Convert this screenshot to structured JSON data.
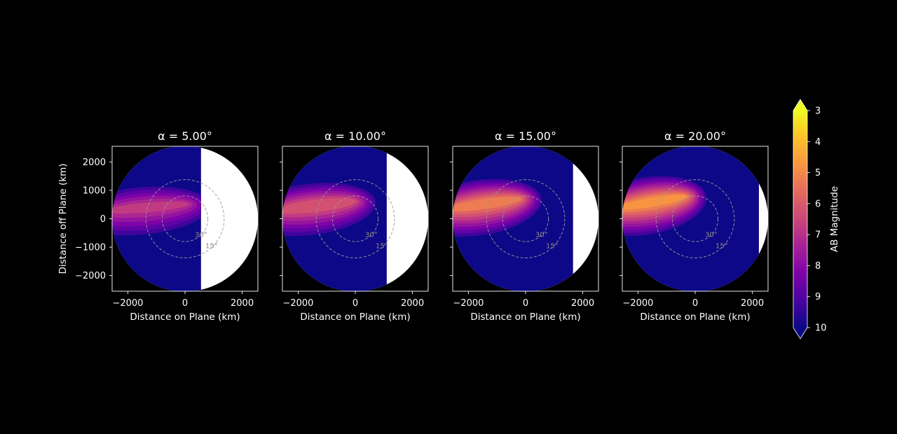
{
  "chart_data": {
    "type": "heatmap",
    "panels": [
      {
        "title": "α = 5.00°",
        "alpha_deg": 5,
        "night_edge_km": 560,
        "peak_mag": 6.9
      },
      {
        "title": "α = 10.00°",
        "alpha_deg": 10,
        "night_edge_km": 1100,
        "peak_mag": 6.2
      },
      {
        "title": "α = 15.00°",
        "alpha_deg": 15,
        "night_edge_km": 1660,
        "peak_mag": 5.4
      },
      {
        "title": "α = 20.00°",
        "alpha_deg": 20,
        "night_edge_km": 2230,
        "peak_mag": 5.0
      }
    ],
    "xlabel": "Distance on Plane (km)",
    "ylabel": "Distance off Plane (km)",
    "xlim": [
      -2550,
      2550
    ],
    "ylim": [
      -2550,
      2550
    ],
    "xticks": [
      -2000,
      0,
      2000
    ],
    "yticks": [
      2000,
      1000,
      0,
      -1000,
      -2000
    ],
    "xtick_labels": [
      "−2000",
      "0",
      "2000"
    ],
    "ytick_labels": [
      "2000",
      "1000",
      "0",
      "−1000",
      "−2000"
    ],
    "disk_radius_km": 2550,
    "elevation_rings": [
      {
        "label": "30°",
        "radius_km": 800
      },
      {
        "label": "15°",
        "radius_km": 1370
      }
    ],
    "colorbar": {
      "label": "AB Magnitude",
      "ticks": [
        "3",
        "4",
        "5",
        "6",
        "7",
        "8",
        "9",
        "10"
      ],
      "vmin": 3,
      "vmax": 10,
      "colormap": "plasma",
      "extend": "both"
    },
    "colors": {
      "background": "#000000",
      "sunlit_region": "#ffffff",
      "ring": "#9a9a9a"
    }
  }
}
